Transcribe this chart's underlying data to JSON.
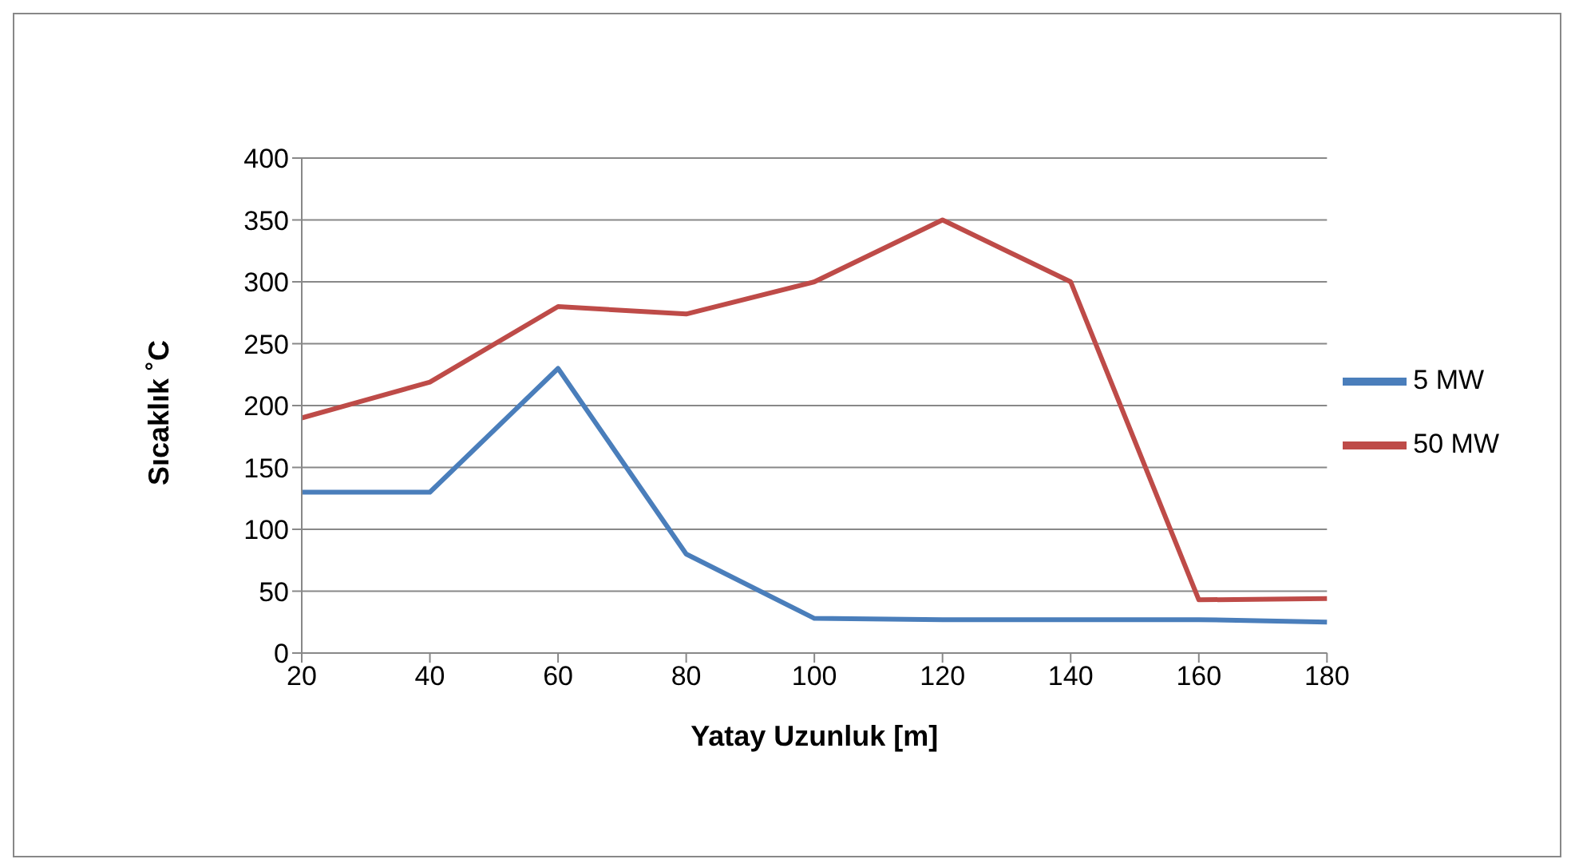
{
  "chart_data": {
    "type": "line",
    "xlabel": "Yatay Uzunluk [m]",
    "ylabel": "Sıcaklık ˚C",
    "categories": [
      "20",
      "40",
      "60",
      "80",
      "100",
      "120",
      "140",
      "160",
      "180"
    ],
    "series": [
      {
        "name": "5 MW",
        "color": "#4a7ebb",
        "values": [
          130,
          130,
          230,
          80,
          28,
          27,
          27,
          27,
          25
        ]
      },
      {
        "name": "50 MW",
        "color": "#be4b48",
        "values": [
          190,
          219,
          280,
          274,
          300,
          350,
          300,
          43,
          44
        ]
      }
    ],
    "ylim": [
      0,
      400
    ],
    "yticks": [
      0,
      50,
      100,
      150,
      200,
      250,
      300,
      350,
      400
    ],
    "grid": "y",
    "legend": "right",
    "marker": "none"
  }
}
